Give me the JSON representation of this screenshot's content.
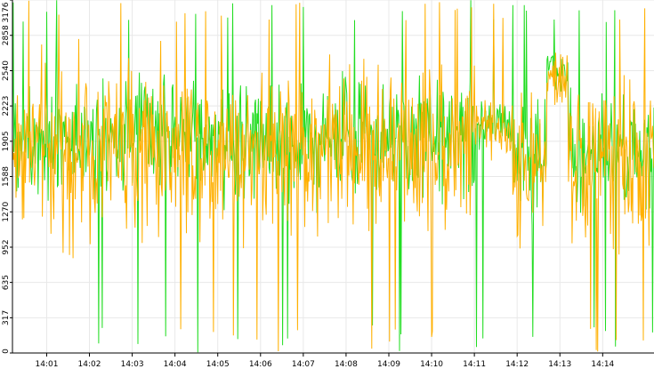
{
  "chart_data": {
    "type": "line",
    "title": "",
    "xlabel": "",
    "ylabel": "",
    "ylim": [
      0,
      3176
    ],
    "y_ticks": [
      0,
      317,
      635,
      952,
      1270,
      1588,
      1905,
      2223,
      2540,
      2858,
      3176
    ],
    "x_tick_labels": [
      "14:01",
      "14:02",
      "14:03",
      "14:04",
      "14:05",
      "14:06",
      "14:07",
      "14:08",
      "14:09",
      "14:10",
      "14:11",
      "14:12",
      "14:13",
      "14:14"
    ],
    "x_range_minutes": [
      0.2,
      15.2
    ],
    "grid": true,
    "legend": "none",
    "series": [
      {
        "color": "#ffb000",
        "points_per_minute": 60,
        "segment_means": [
          {
            "start_minute": 0.2,
            "mean": 1850,
            "spread": 650
          },
          {
            "start_minute": 11.0,
            "mean": 2000,
            "spread": 250
          },
          {
            "start_minute": 11.9,
            "mean": 1700,
            "spread": 600
          },
          {
            "start_minute": 12.7,
            "mean": 2450,
            "spread": 250
          },
          {
            "start_minute": 13.2,
            "mean": 1700,
            "spread": 650
          }
        ]
      },
      {
        "color": "#22dd22",
        "points_per_minute": 60,
        "segment_means": [
          {
            "start_minute": 0.2,
            "mean": 1950,
            "spread": 450
          },
          {
            "start_minute": 11.0,
            "mean": 2050,
            "spread": 200
          },
          {
            "start_minute": 11.9,
            "mean": 1800,
            "spread": 450
          },
          {
            "start_minute": 12.7,
            "mean": 2550,
            "spread": 200
          },
          {
            "start_minute": 13.2,
            "mean": 1800,
            "spread": 450
          }
        ]
      }
    ]
  },
  "colors": {
    "background": "#ffffff",
    "grid": "#e8e8e8",
    "axis": "#000000"
  }
}
